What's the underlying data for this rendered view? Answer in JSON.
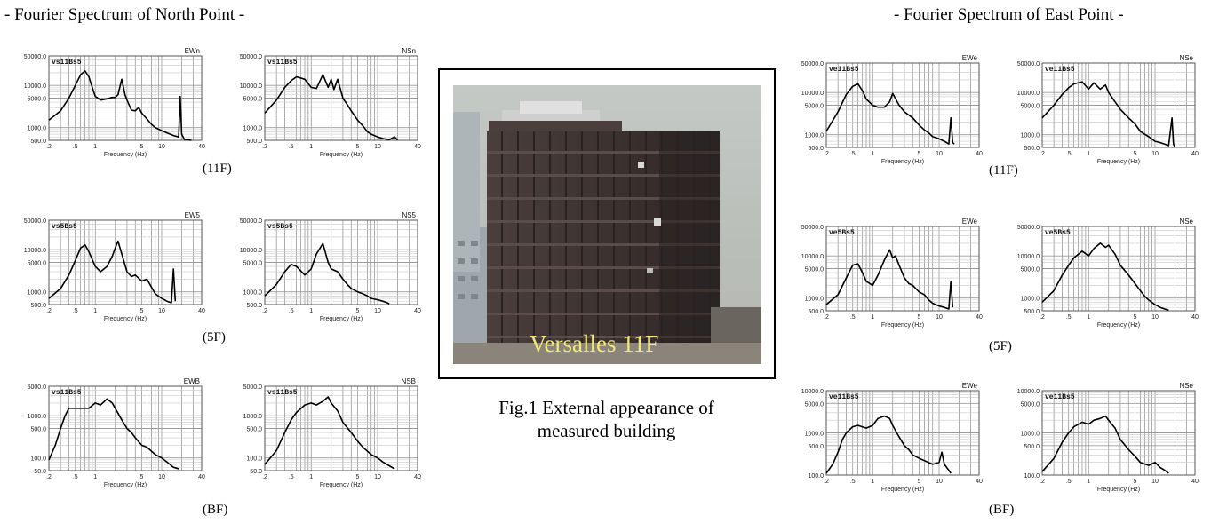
{
  "groups": {
    "north": {
      "title": "- Fourier Spectrum of North Point -"
    },
    "east": {
      "title": "- Fourier Spectrum of East Point -"
    }
  },
  "levels": {
    "f11": "(11F)",
    "f5": "(5F)",
    "bf": "(BF)"
  },
  "figure": {
    "caption_line1": "Fig.1 External appearance of",
    "caption_line2": "measured building"
  },
  "photo": {
    "overlay_text": "Versalles 11F"
  },
  "chart_data": [
    {
      "id": "n11ew",
      "type": "line",
      "grid": true,
      "xscale": "log",
      "yscale": "log",
      "xlim": [
        0.2,
        40
      ],
      "ylim": [
        500,
        50000
      ],
      "xticks": [
        ".2",
        ".5",
        "1",
        "5",
        "10",
        "40"
      ],
      "yticks": [
        "500.0",
        "1000.0",
        "5000.0",
        "10000.0",
        "50000.0"
      ],
      "xlabel": "Frequency (Hz)",
      "component": "EWn",
      "tag": "vs11Bs5",
      "series": [
        {
          "x": [
            0.2,
            0.3,
            0.4,
            0.5,
            0.6,
            0.7,
            0.8,
            0.9,
            1.0,
            1.2,
            1.5,
            1.8,
            2.0,
            2.2,
            2.5,
            2.8,
            3.0,
            3.5,
            4,
            4.5,
            5,
            6,
            7,
            8,
            10,
            12,
            15,
            18,
            19,
            20,
            21,
            22,
            25,
            28
          ],
          "y": [
            1500,
            2500,
            5000,
            10000,
            18000,
            22000,
            16000,
            9000,
            5500,
            4500,
            4800,
            5200,
            5200,
            6000,
            14000,
            6000,
            4500,
            2600,
            2500,
            3000,
            2200,
            1600,
            1200,
            1000,
            850,
            750,
            650,
            600,
            5500,
            700,
            600,
            520,
            510,
            500
          ]
        }
      ]
    },
    {
      "id": "n11ns",
      "type": "line",
      "grid": true,
      "xscale": "log",
      "yscale": "log",
      "xlim": [
        0.2,
        40
      ],
      "ylim": [
        500,
        50000
      ],
      "xticks": [
        ".2",
        ".5",
        "1",
        "5",
        "10",
        "40"
      ],
      "yticks": [
        "500.0",
        "1000.0",
        "5000.0",
        "10000.0",
        "50000.0"
      ],
      "xlabel": "Frequency (Hz)",
      "component": "NSn",
      "tag": "vs11Bs5",
      "series": [
        {
          "x": [
            0.2,
            0.3,
            0.4,
            0.5,
            0.6,
            0.8,
            1.0,
            1.2,
            1.5,
            1.8,
            2.0,
            2.2,
            2.5,
            3.0,
            3.5,
            4,
            5,
            6,
            7,
            8,
            10,
            12,
            15,
            18,
            20
          ],
          "y": [
            2200,
            4500,
            9000,
            13000,
            16000,
            14000,
            9000,
            8500,
            18000,
            9000,
            14000,
            8000,
            14000,
            5000,
            3500,
            2500,
            1500,
            1100,
            800,
            700,
            600,
            550,
            520,
            600,
            510
          ]
        }
      ]
    },
    {
      "id": "n5ew",
      "type": "line",
      "grid": true,
      "xscale": "log",
      "yscale": "log",
      "xlim": [
        0.2,
        40
      ],
      "ylim": [
        500,
        50000
      ],
      "xticks": [
        ".2",
        ".5",
        "1",
        "5",
        "10",
        "40"
      ],
      "yticks": [
        "500.0",
        "1000.0",
        "5000.0",
        "10000.0",
        "50000.0"
      ],
      "xlabel": "Frequency (Hz)",
      "component": "EW5",
      "tag": "vs5Bs5",
      "series": [
        {
          "x": [
            0.2,
            0.3,
            0.4,
            0.5,
            0.6,
            0.7,
            0.8,
            1.0,
            1.2,
            1.5,
            1.8,
            2.0,
            2.2,
            2.5,
            3,
            3.5,
            4,
            5,
            6,
            7,
            8,
            10,
            12,
            14,
            15,
            16
          ],
          "y": [
            700,
            1200,
            2500,
            5500,
            11000,
            13000,
            9000,
            4000,
            3000,
            4000,
            7000,
            11000,
            16000,
            8000,
            3000,
            2300,
            2500,
            1800,
            2000,
            1300,
            900,
            700,
            600,
            550,
            3500,
            600
          ]
        }
      ]
    },
    {
      "id": "n5ns",
      "type": "line",
      "grid": true,
      "xscale": "log",
      "yscale": "log",
      "xlim": [
        0.2,
        40
      ],
      "ylim": [
        500,
        50000
      ],
      "xticks": [
        ".2",
        ".5",
        "1",
        "5",
        "10",
        "40"
      ],
      "yticks": [
        "500.0",
        "1000.0",
        "5000.0",
        "10000.0",
        "50000.0"
      ],
      "xlabel": "Frequency (Hz)",
      "component": "NS5",
      "tag": "vs5Bs5",
      "series": [
        {
          "x": [
            0.2,
            0.3,
            0.4,
            0.5,
            0.6,
            0.8,
            1.0,
            1.2,
            1.5,
            1.8,
            2.0,
            2.5,
            3,
            3.5,
            4,
            5,
            6,
            7,
            8,
            10,
            12,
            14,
            15
          ],
          "y": [
            800,
            1500,
            3000,
            4500,
            4000,
            2500,
            3500,
            8000,
            14000,
            5000,
            3500,
            3000,
            2000,
            1500,
            1200,
            1000,
            900,
            800,
            700,
            650,
            600,
            550,
            520
          ]
        }
      ]
    },
    {
      "id": "nbew",
      "type": "line",
      "grid": true,
      "xscale": "log",
      "yscale": "log",
      "xlim": [
        0.2,
        40
      ],
      "ylim": [
        50,
        5000
      ],
      "xticks": [
        ".2",
        ".5",
        "1",
        "5",
        "10",
        "40"
      ],
      "yticks": [
        "50.0",
        "100.0",
        "500.0",
        "1000.0",
        "5000.0"
      ],
      "xlabel": "Frequency (Hz)",
      "component": "EWB",
      "tag": "vs11Bs5",
      "series": [
        {
          "x": [
            0.2,
            0.25,
            0.3,
            0.35,
            0.4,
            0.5,
            0.6,
            0.8,
            1.0,
            1.2,
            1.5,
            1.8,
            2.0,
            2.5,
            3,
            3.5,
            4,
            5,
            6,
            8,
            10,
            12,
            15,
            18
          ],
          "y": [
            90,
            200,
            500,
            1000,
            1500,
            1500,
            1500,
            1500,
            2000,
            1800,
            2500,
            2000,
            1500,
            800,
            500,
            400,
            300,
            200,
            180,
            120,
            100,
            80,
            60,
            55
          ]
        }
      ]
    },
    {
      "id": "nbns",
      "type": "line",
      "grid": true,
      "xscale": "log",
      "yscale": "log",
      "xlim": [
        0.2,
        40
      ],
      "ylim": [
        50,
        5000
      ],
      "xticks": [
        ".2",
        ".5",
        "1",
        "5",
        "10",
        "40"
      ],
      "yticks": [
        "50.0",
        "100.0",
        "500.0",
        "1000.0",
        "5000.0"
      ],
      "xlabel": "Frequency (Hz)",
      "component": "NSB",
      "tag": "vs11Bs5",
      "series": [
        {
          "x": [
            0.2,
            0.3,
            0.4,
            0.5,
            0.6,
            0.8,
            1.0,
            1.2,
            1.5,
            1.8,
            2.0,
            2.5,
            3,
            4,
            5,
            6,
            8,
            10,
            12,
            15,
            18
          ],
          "y": [
            70,
            150,
            400,
            800,
            1200,
            1800,
            2000,
            1800,
            2200,
            2800,
            2000,
            1300,
            700,
            400,
            250,
            180,
            120,
            100,
            80,
            65,
            55
          ]
        }
      ]
    },
    {
      "id": "e11ew",
      "type": "line",
      "grid": true,
      "xscale": "log",
      "yscale": "log",
      "xlim": [
        0.2,
        40
      ],
      "ylim": [
        500,
        50000
      ],
      "xticks": [
        ".2",
        ".5",
        "1",
        "5",
        "10",
        "40"
      ],
      "yticks": [
        "500.0",
        "1000.0",
        "5000.0",
        "10000.0",
        "50000.0"
      ],
      "xlabel": "Frequency (Hz)",
      "component": "EWe",
      "tag": "ve11Bs5",
      "series": [
        {
          "x": [
            0.2,
            0.3,
            0.4,
            0.5,
            0.6,
            0.7,
            0.8,
            1.0,
            1.2,
            1.5,
            1.8,
            2.0,
            2.5,
            3,
            4,
            5,
            6,
            7,
            8,
            10,
            12,
            14,
            15,
            16,
            17
          ],
          "y": [
            1200,
            3500,
            9000,
            14000,
            16000,
            11000,
            7000,
            5000,
            4500,
            4500,
            6000,
            9500,
            5000,
            3500,
            2500,
            1700,
            1300,
            1100,
            900,
            800,
            700,
            600,
            2500,
            650,
            600
          ]
        }
      ]
    },
    {
      "id": "e11ns",
      "type": "line",
      "grid": true,
      "xscale": "log",
      "yscale": "log",
      "xlim": [
        0.2,
        40
      ],
      "ylim": [
        500,
        50000
      ],
      "xticks": [
        ".2",
        ".5",
        "1",
        "5",
        "10",
        "40"
      ],
      "yticks": [
        "500.0",
        "1000.0",
        "5000.0",
        "10000.0",
        "50000.0"
      ],
      "xlabel": "Frequency (Hz)",
      "component": "NSe",
      "tag": "ve11Bs5",
      "series": [
        {
          "x": [
            0.2,
            0.3,
            0.4,
            0.5,
            0.6,
            0.8,
            1.0,
            1.2,
            1.5,
            1.8,
            2.0,
            2.5,
            3,
            4,
            5,
            6,
            8,
            10,
            12,
            14,
            16,
            18,
            19,
            20
          ],
          "y": [
            2500,
            5000,
            9000,
            13000,
            16000,
            18000,
            12000,
            17000,
            12000,
            15000,
            10000,
            6000,
            4000,
            2500,
            1800,
            1200,
            900,
            700,
            650,
            600,
            550,
            2500,
            600,
            500
          ]
        }
      ]
    },
    {
      "id": "e5ew",
      "type": "line",
      "grid": true,
      "xscale": "log",
      "yscale": "log",
      "xlim": [
        0.2,
        40
      ],
      "ylim": [
        500,
        50000
      ],
      "xticks": [
        ".2",
        ".5",
        "1",
        "5",
        "10",
        "40"
      ],
      "yticks": [
        "500.0",
        "1000.0",
        "5000.0",
        "10000.0",
        "50000.0"
      ],
      "xlabel": "Frequency (Hz)",
      "component": "EWe",
      "tag": "ve5Bs5",
      "series": [
        {
          "x": [
            0.2,
            0.3,
            0.4,
            0.5,
            0.6,
            0.7,
            0.8,
            1.0,
            1.2,
            1.5,
            1.8,
            2.0,
            2.2,
            2.5,
            3,
            3.5,
            4,
            5,
            6,
            7,
            8,
            10,
            12,
            14,
            15,
            16
          ],
          "y": [
            700,
            1200,
            3000,
            6000,
            6500,
            4000,
            2500,
            2000,
            3500,
            8000,
            14000,
            9000,
            10000,
            6000,
            3000,
            2200,
            2000,
            1400,
            1200,
            900,
            750,
            650,
            600,
            550,
            2500,
            600
          ]
        }
      ]
    },
    {
      "id": "e5ns",
      "type": "line",
      "grid": true,
      "xscale": "log",
      "yscale": "log",
      "xlim": [
        0.2,
        40
      ],
      "ylim": [
        500,
        50000
      ],
      "xticks": [
        ".2",
        ".5",
        "1",
        "5",
        "10",
        "40"
      ],
      "yticks": [
        "500.0",
        "1000.0",
        "5000.0",
        "10000.0",
        "50000.0"
      ],
      "xlabel": "Frequency (Hz)",
      "component": "NSe",
      "tag": "ve5Bs5",
      "series": [
        {
          "x": [
            0.2,
            0.3,
            0.4,
            0.5,
            0.6,
            0.8,
            1.0,
            1.2,
            1.5,
            1.8,
            2.0,
            2.5,
            3,
            4,
            5,
            6,
            7,
            8,
            10,
            12,
            14,
            16
          ],
          "y": [
            800,
            1500,
            3500,
            6000,
            9000,
            13000,
            10000,
            15000,
            20000,
            16000,
            18000,
            11000,
            6000,
            3500,
            2200,
            1500,
            1100,
            900,
            700,
            600,
            550,
            520
          ]
        }
      ]
    },
    {
      "id": "ebew",
      "type": "line",
      "grid": true,
      "xscale": "log",
      "yscale": "log",
      "xlim": [
        0.2,
        40
      ],
      "ylim": [
        100,
        10000
      ],
      "xticks": [
        ".2",
        ".5",
        "1",
        "5",
        "10",
        "40"
      ],
      "yticks": [
        "100.0",
        "500.0",
        "1000.0",
        "5000.0",
        "10000.0"
      ],
      "xlabel": "Frequency (Hz)",
      "component": "EWe",
      "tag": "ve11Bs5",
      "series": [
        {
          "x": [
            0.2,
            0.25,
            0.3,
            0.35,
            0.4,
            0.5,
            0.6,
            0.8,
            1.0,
            1.2,
            1.5,
            1.8,
            2.0,
            2.5,
            3,
            3.5,
            4,
            5,
            6,
            8,
            10,
            11,
            12,
            14,
            15
          ],
          "y": [
            110,
            180,
            350,
            700,
            1000,
            1400,
            1500,
            1300,
            1500,
            2200,
            2500,
            2200,
            1500,
            800,
            500,
            400,
            300,
            250,
            220,
            180,
            200,
            350,
            180,
            130,
            110
          ]
        }
      ]
    },
    {
      "id": "ebns",
      "type": "line",
      "grid": true,
      "xscale": "log",
      "yscale": "log",
      "xlim": [
        0.2,
        40
      ],
      "ylim": [
        100,
        10000
      ],
      "xticks": [
        ".2",
        ".5",
        "1",
        "5",
        "10",
        "40"
      ],
      "yticks": [
        "100.0",
        "500.0",
        "1000.0",
        "5000.0",
        "10000.0"
      ],
      "xlabel": "Frequency (Hz)",
      "component": "NSe",
      "tag": "ve11Bs5",
      "series": [
        {
          "x": [
            0.2,
            0.3,
            0.4,
            0.5,
            0.6,
            0.8,
            1.0,
            1.2,
            1.5,
            1.8,
            2.0,
            2.5,
            3,
            4,
            5,
            6,
            8,
            10,
            12,
            14,
            16
          ],
          "y": [
            120,
            250,
            600,
            1000,
            1400,
            1800,
            1600,
            2000,
            2200,
            2500,
            2000,
            1300,
            700,
            400,
            280,
            200,
            170,
            200,
            150,
            130,
            110
          ]
        }
      ]
    }
  ]
}
